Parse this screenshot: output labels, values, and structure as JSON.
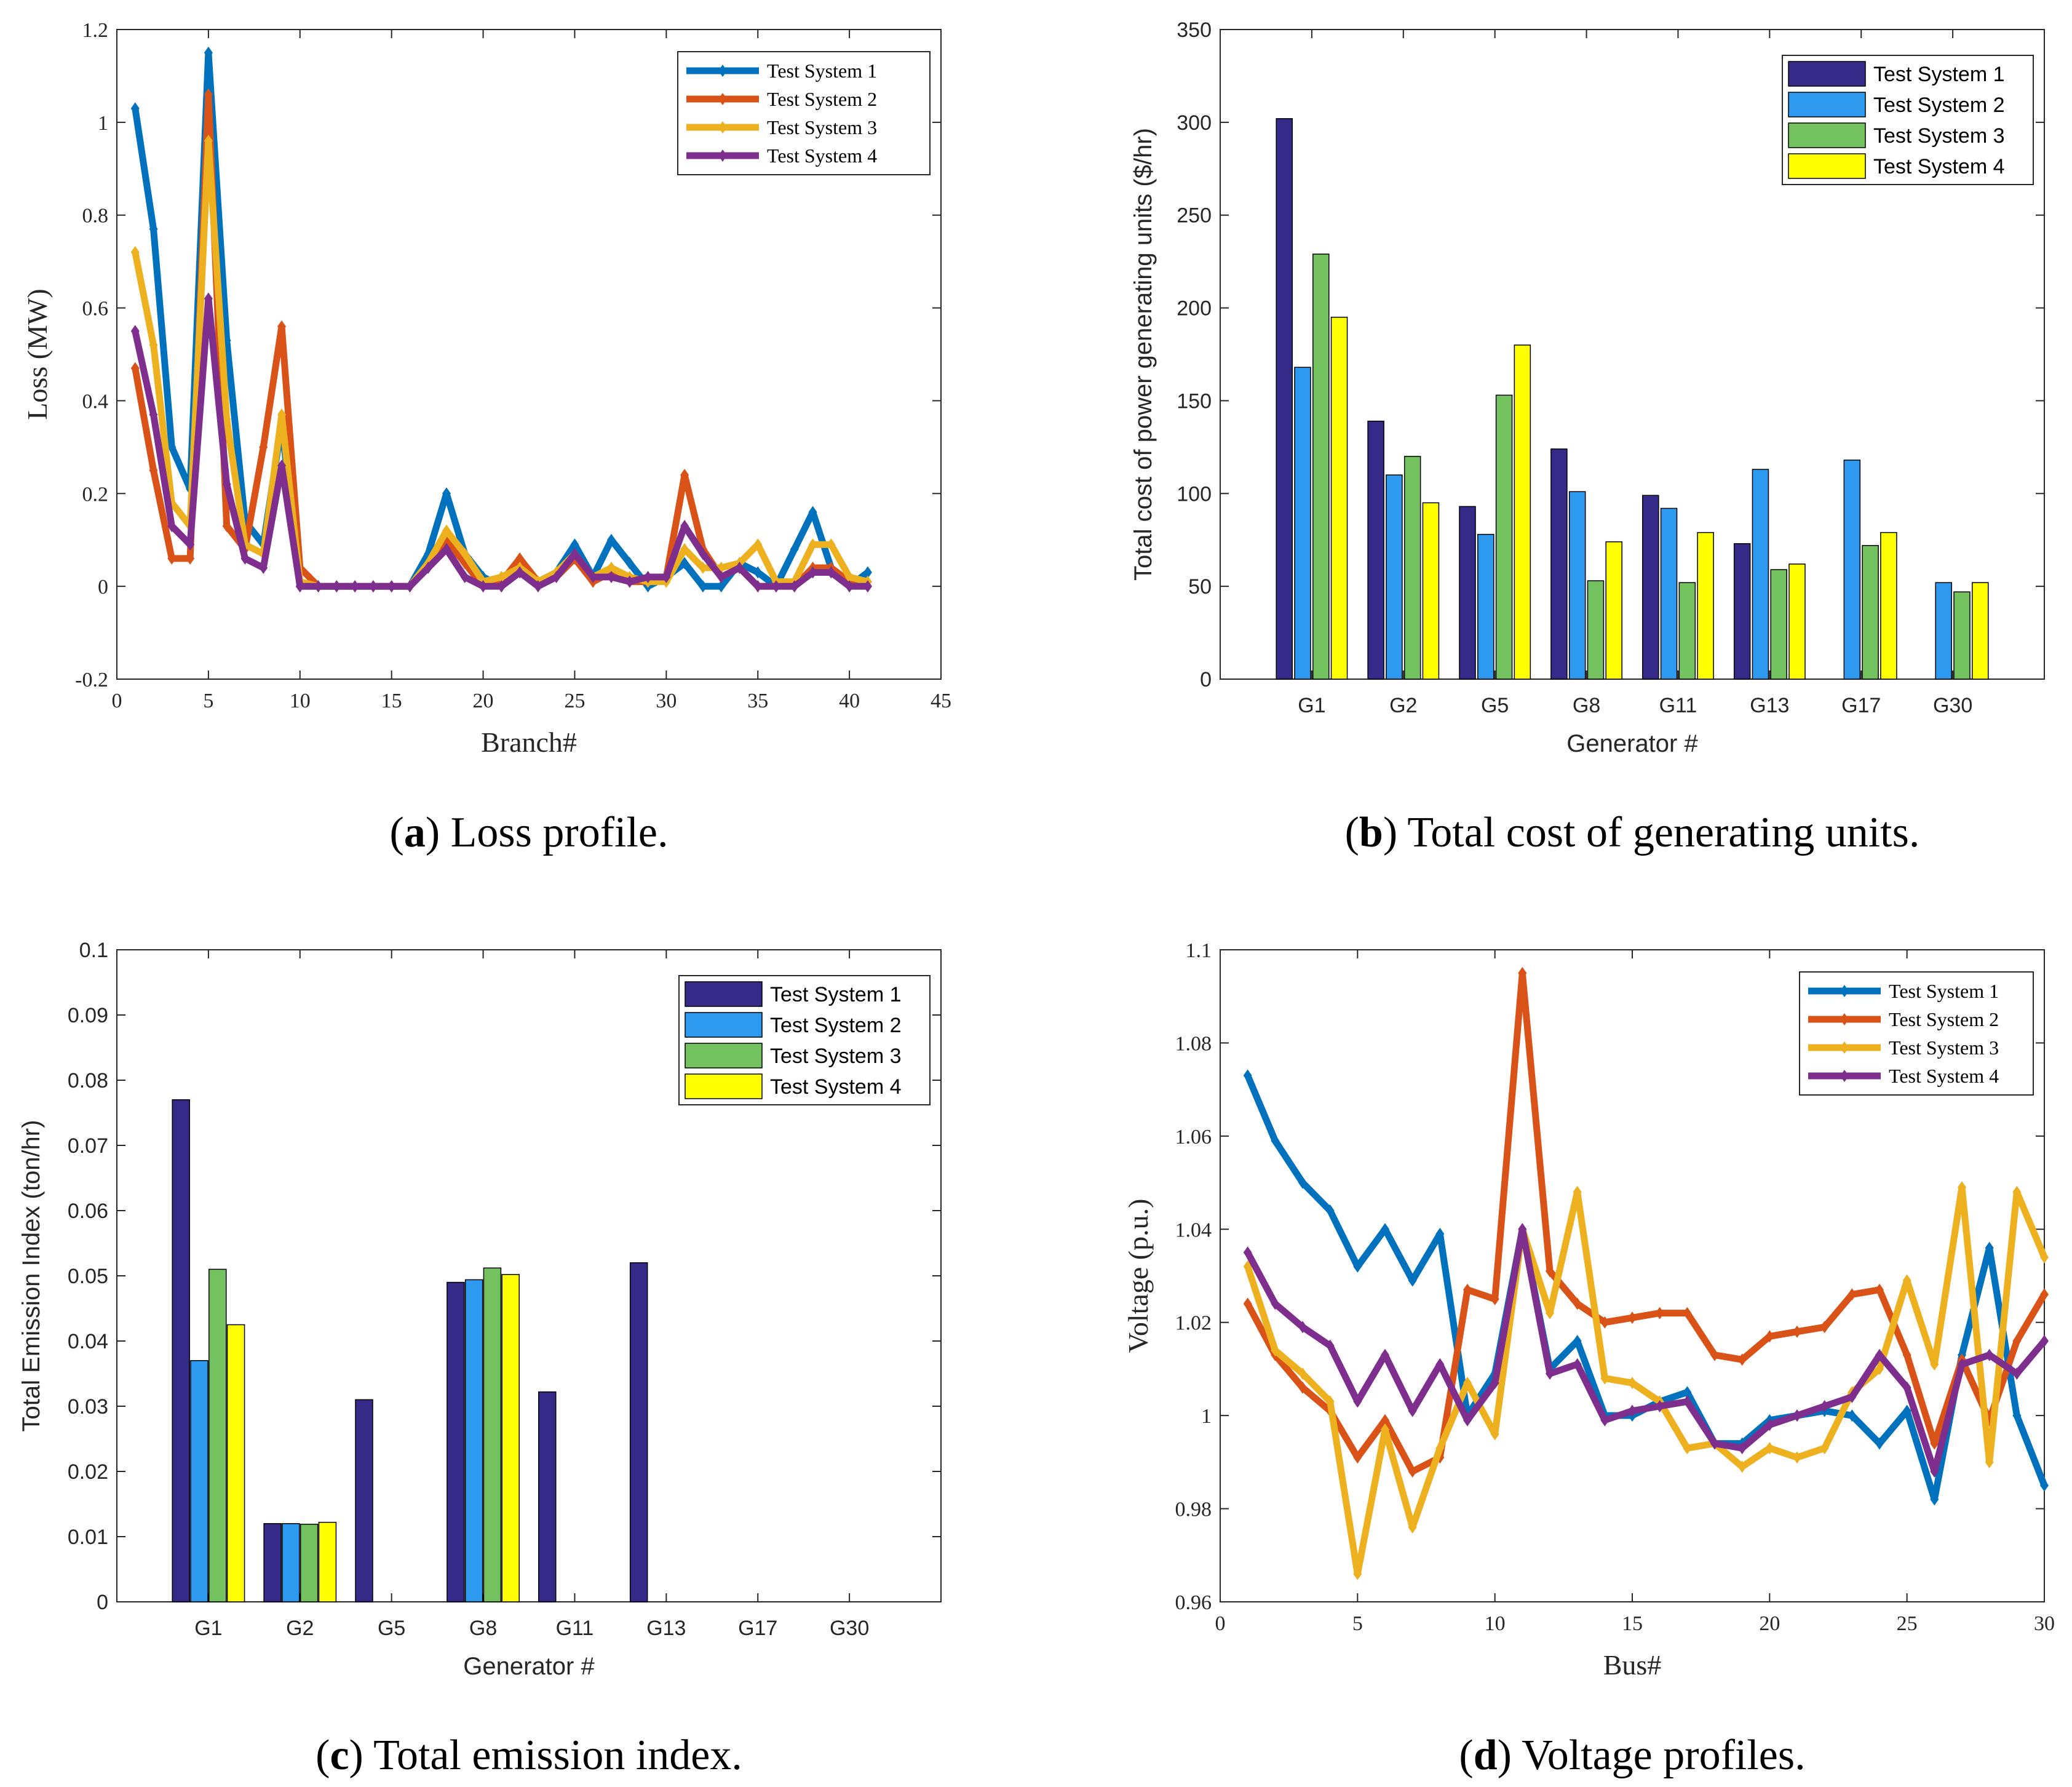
{
  "colors": {
    "blue_line": "#0072BD",
    "orange_line": "#D95319",
    "yellow_line": "#EDB120",
    "purple_line": "#7E2F8E",
    "bar1": "#352A87",
    "bar2": "#2E9AEF",
    "bar3": "#73C15F",
    "bar4": "#FFFF00"
  },
  "chart_data": [
    {
      "id": "a",
      "type": "line",
      "caption_letter": "a",
      "caption_text": " Loss profile.",
      "xlabel": "Branch#",
      "ylabel": "Loss (MW)",
      "xlim": [
        0,
        45
      ],
      "ylim": [
        -0.2,
        1.2
      ],
      "xticks": [
        0,
        5,
        10,
        15,
        20,
        25,
        30,
        35,
        40,
        45
      ],
      "yticks": [
        -0.2,
        0,
        0.2,
        0.4,
        0.6,
        0.8,
        1,
        1.2
      ],
      "ytick_labels": [
        "-0.2",
        "0",
        "0.2",
        "0.4",
        "0.6",
        "0.8",
        "1",
        "1.2"
      ],
      "legend_position": "top-right",
      "x": [
        1,
        2,
        3,
        4,
        5,
        6,
        7,
        8,
        9,
        10,
        11,
        12,
        13,
        14,
        15,
        16,
        17,
        18,
        19,
        20,
        21,
        22,
        23,
        24,
        25,
        26,
        27,
        28,
        29,
        30,
        31,
        32,
        33,
        34,
        35,
        36,
        37,
        38,
        39,
        40,
        41
      ],
      "series": [
        {
          "name": "Test System 1",
          "values": [
            1.03,
            0.77,
            0.3,
            0.21,
            1.15,
            0.53,
            0.14,
            0.09,
            0.35,
            0.0,
            0.0,
            0.0,
            0.0,
            0.0,
            0.0,
            0.0,
            0.07,
            0.2,
            0.07,
            0.02,
            0.0,
            0.04,
            0.01,
            0.03,
            0.09,
            0.02,
            0.1,
            0.05,
            0.0,
            0.02,
            0.05,
            0.0,
            0.0,
            0.05,
            0.03,
            0.0,
            0.08,
            0.16,
            0.04,
            0.0,
            0.03
          ]
        },
        {
          "name": "Test System 2",
          "values": [
            0.47,
            0.25,
            0.06,
            0.06,
            1.06,
            0.13,
            0.08,
            0.3,
            0.56,
            0.04,
            0.0,
            0.0,
            0.0,
            0.0,
            0.0,
            0.0,
            0.05,
            0.1,
            0.05,
            0.0,
            0.01,
            0.06,
            0.01,
            0.02,
            0.06,
            0.01,
            0.03,
            0.01,
            0.01,
            0.02,
            0.24,
            0.08,
            0.02,
            0.04,
            0.0,
            0.0,
            0.0,
            0.04,
            0.04,
            0.01,
            0.0
          ]
        },
        {
          "name": "Test System 3",
          "values": [
            0.72,
            0.52,
            0.18,
            0.13,
            0.96,
            0.36,
            0.09,
            0.07,
            0.37,
            0.01,
            0.0,
            0.0,
            0.0,
            0.0,
            0.0,
            0.0,
            0.05,
            0.12,
            0.07,
            0.01,
            0.02,
            0.04,
            0.01,
            0.03,
            0.07,
            0.02,
            0.04,
            0.02,
            0.01,
            0.01,
            0.08,
            0.04,
            0.04,
            0.05,
            0.09,
            0.01,
            0.01,
            0.09,
            0.09,
            0.02,
            0.01
          ]
        },
        {
          "name": "Test System 4",
          "values": [
            0.55,
            0.37,
            0.13,
            0.09,
            0.62,
            0.22,
            0.06,
            0.04,
            0.26,
            0.0,
            0.0,
            0.0,
            0.0,
            0.0,
            0.0,
            0.0,
            0.04,
            0.08,
            0.02,
            0.0,
            0.0,
            0.03,
            0.0,
            0.02,
            0.07,
            0.02,
            0.02,
            0.01,
            0.02,
            0.02,
            0.13,
            0.07,
            0.02,
            0.04,
            0.0,
            0.0,
            0.0,
            0.03,
            0.03,
            0.0,
            0.0
          ]
        }
      ]
    },
    {
      "id": "b",
      "type": "bar",
      "caption_letter": "b",
      "caption_text": " Total cost of generating units.",
      "xlabel": "Generator #",
      "ylabel": "Total cost of power generating units ($/hr)",
      "ylim": [
        0,
        350
      ],
      "yticks": [
        0,
        50,
        100,
        150,
        200,
        250,
        300,
        350
      ],
      "ytick_labels": [
        "0",
        "50",
        "100",
        "150",
        "200",
        "250",
        "300",
        "350"
      ],
      "legend_position": "top-right",
      "categories": [
        "G1",
        "G2",
        "G5",
        "G8",
        "G11",
        "G13",
        "G17",
        "G30"
      ],
      "series": [
        {
          "name": "Test System 1",
          "values": [
            302,
            139,
            93,
            124,
            99,
            73,
            0,
            0
          ]
        },
        {
          "name": "Test System 2",
          "values": [
            168,
            110,
            78,
            101,
            92,
            113,
            118,
            52
          ]
        },
        {
          "name": "Test System 3",
          "values": [
            229,
            120,
            153,
            53,
            52,
            59,
            72,
            47
          ]
        },
        {
          "name": "Test System 4",
          "values": [
            195,
            95,
            180,
            74,
            79,
            62,
            79,
            52
          ]
        }
      ]
    },
    {
      "id": "c",
      "type": "bar",
      "caption_letter": "c",
      "caption_text": " Total emission index.",
      "xlabel": "Generator #",
      "ylabel": "Total Emission Index (ton/hr)",
      "ylim": [
        0,
        0.1
      ],
      "yticks": [
        0,
        0.01,
        0.02,
        0.03,
        0.04,
        0.05,
        0.06,
        0.07,
        0.08,
        0.09,
        0.1
      ],
      "ytick_labels": [
        "0",
        "0.01",
        "0.02",
        "0.03",
        "0.04",
        "0.05",
        "0.06",
        "0.07",
        "0.08",
        "0.09",
        "0.1"
      ],
      "legend_position": "top-right",
      "categories": [
        "G1",
        "G2",
        "G5",
        "G8",
        "G11",
        "G13",
        "G17",
        "G30"
      ],
      "series": [
        {
          "name": "Test System 1",
          "values": [
            0.077,
            0.012,
            0.031,
            0.049,
            0.0322,
            0.052,
            0,
            0
          ]
        },
        {
          "name": "Test System 2",
          "values": [
            0.037,
            0.012,
            0,
            0.0494,
            0,
            0,
            0,
            0
          ]
        },
        {
          "name": "Test System 3",
          "values": [
            0.051,
            0.0119,
            0,
            0.0512,
            0,
            0,
            0,
            0
          ]
        },
        {
          "name": "Test System 4",
          "values": [
            0.0425,
            0.0122,
            0,
            0.0502,
            0,
            0,
            0,
            0
          ]
        }
      ]
    },
    {
      "id": "d",
      "type": "line",
      "caption_letter": "d",
      "caption_text": " Voltage profiles.",
      "xlabel": "Bus#",
      "ylabel": "Voltage (p.u.)",
      "xlim": [
        0,
        30
      ],
      "ylim": [
        0.96,
        1.1
      ],
      "xticks": [
        0,
        5,
        10,
        15,
        20,
        25,
        30
      ],
      "yticks": [
        0.96,
        0.98,
        1.0,
        1.02,
        1.04,
        1.06,
        1.08,
        1.1
      ],
      "ytick_labels": [
        "0.96",
        "0.98",
        "1",
        "1.02",
        "1.04",
        "1.06",
        "1.08",
        "1.1"
      ],
      "legend_position": "top-right",
      "x": [
        1,
        2,
        3,
        4,
        5,
        6,
        7,
        8,
        9,
        10,
        11,
        12,
        13,
        14,
        15,
        16,
        17,
        18,
        19,
        20,
        21,
        22,
        23,
        24,
        25,
        26,
        27,
        28,
        29,
        30
      ],
      "series": [
        {
          "name": "Test System 1",
          "values": [
            1.073,
            1.059,
            1.05,
            1.044,
            1.032,
            1.04,
            1.029,
            1.039,
            1.0,
            1.009,
            1.04,
            1.01,
            1.016,
            1.0,
            1.0,
            1.003,
            1.005,
            0.994,
            0.994,
            0.999,
            1.0,
            1.001,
            1.0,
            0.994,
            1.001,
            0.982,
            1.013,
            1.036,
            1.0,
            0.985
          ]
        },
        {
          "name": "Test System 2",
          "values": [
            1.024,
            1.013,
            1.006,
            1.001,
            0.991,
            0.999,
            0.988,
            0.991,
            1.027,
            1.025,
            1.095,
            1.031,
            1.024,
            1.02,
            1.021,
            1.022,
            1.022,
            1.013,
            1.012,
            1.017,
            1.018,
            1.019,
            1.026,
            1.027,
            1.013,
            0.994,
            1.012,
            0.999,
            1.016,
            1.026
          ]
        },
        {
          "name": "Test System 3",
          "values": [
            1.032,
            1.014,
            1.009,
            1.003,
            0.966,
            0.997,
            0.976,
            0.993,
            1.007,
            0.996,
            1.04,
            1.022,
            1.048,
            1.008,
            1.007,
            1.003,
            0.993,
            0.994,
            0.989,
            0.993,
            0.991,
            0.993,
            1.005,
            1.01,
            1.029,
            1.011,
            1.049,
            0.99,
            1.048,
            1.034
          ]
        },
        {
          "name": "Test System 4",
          "values": [
            1.035,
            1.024,
            1.019,
            1.015,
            1.003,
            1.013,
            1.001,
            1.011,
            0.999,
            1.007,
            1.04,
            1.009,
            1.011,
            0.999,
            1.001,
            1.002,
            1.003,
            0.994,
            0.993,
            0.998,
            1.0,
            1.002,
            1.004,
            1.013,
            1.006,
            0.988,
            1.011,
            1.013,
            1.009,
            1.016
          ]
        }
      ]
    }
  ]
}
